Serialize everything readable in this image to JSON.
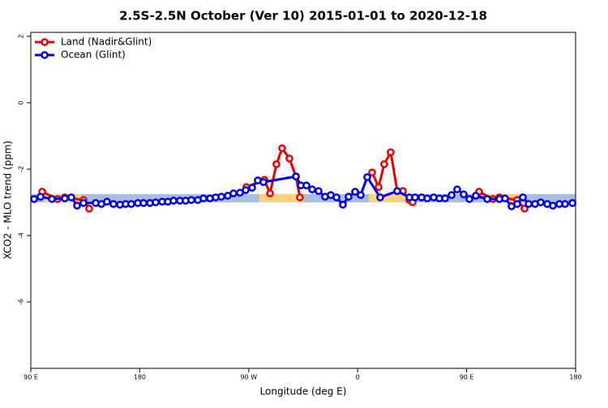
{
  "chart_data": {
    "type": "line",
    "title": "2.5S-2.5N October (Ver 10)   2015-01-01 to 2020-12-18",
    "x_label": "Longitude (deg E)",
    "y_label": "XCO2 - MLO trend (ppm)",
    "xlim": [
      90,
      540
    ],
    "ylim": [
      -8,
      2.12
    ],
    "xticks": [
      {
        "value": 90,
        "label": "90 E"
      },
      180,
      {
        "value": 270,
        "label": "90 W"
      },
      {
        "value": 360,
        "label": "0"
      },
      {
        "value": 450,
        "label": "90 E"
      },
      {
        "value": 540,
        "label": "180"
      }
    ],
    "yticks": [
      -6,
      -4,
      -2,
      0,
      2
    ],
    "legend": "top-left",
    "bands": [
      {
        "xlim": [
          90,
          540
        ],
        "ylim": [
          -3.0,
          -2.75
        ],
        "color": "#a6bfe0"
      },
      {
        "xlim": [
          101.4,
          131.5
        ],
        "ylim": [
          -3.0,
          -2.75
        ],
        "color": "#fdd27a"
      },
      {
        "xlim": [
          278.8,
          315.7
        ],
        "ylim": [
          -3.0,
          -2.75
        ],
        "color": "#fdd27a"
      },
      {
        "xlim": [
          369.2,
          400.7
        ],
        "ylim": [
          -3.0,
          -2.75
        ],
        "color": "#fdd27a"
      },
      {
        "xlim": [
          466.3,
          493.1
        ],
        "ylim": [
          -3.0,
          -2.75
        ],
        "color": "#fdd27a"
      }
    ],
    "series": [
      {
        "name": "Land (Nadir&Glint)",
        "color": "#ee0000",
        "x": [
          99.4,
          112.1,
          118.1,
          133.5,
          138.2,
          null,
          268.1,
          282.9,
          287.6,
          292.9,
          297.6,
          303.6,
          309.0,
          312.3,
          null,
          371.9,
          377.3,
          381.9,
          387.3,
          392.7,
          397.4,
          402.7,
          405.4,
          null,
          460.3,
          471.7,
          477.1,
          491.8,
          497.8
        ],
        "values": [
          -2.68,
          -2.9,
          -2.85,
          -2.93,
          -3.19,
          null,
          -2.54,
          -2.32,
          -2.73,
          -1.85,
          -1.37,
          -1.68,
          -2.22,
          -2.85,
          null,
          -2.1,
          -2.54,
          -1.85,
          -1.49,
          -2.66,
          -2.66,
          -2.93,
          -3.0,
          null,
          -2.68,
          -2.9,
          -2.85,
          -2.93,
          -3.19
        ]
      },
      {
        "name": "Ocean (Glint)",
        "color": "#0000ee",
        "x": [
          92.7,
          98.0,
          107.4,
          118.1,
          123.5,
          128.2,
          133.5,
          143.6,
          148.3,
          152.9,
          158.3,
          163.7,
          168.3,
          173.0,
          178.4,
          183.1,
          188.4,
          193.1,
          198.5,
          203.2,
          207.9,
          213.2,
          217.9,
          222.6,
          228.0,
          232.6,
          238.0,
          242.7,
          247.4,
          252.7,
          257.4,
          262.8,
          267.5,
          272.8,
          277.5,
          282.2,
          309.0,
          313.0,
          317.7,
          322.4,
          327.7,
          333.1,
          337.8,
          342.5,
          347.8,
          352.5,
          357.9,
          362.5,
          367.9,
          378.6,
          392.7,
          402.7,
          407.4,
          412.8,
          417.5,
          422.8,
          427.5,
          432.2,
          437.6,
          442.2,
          447.6,
          452.3,
          457.6,
          467.0,
          477.1,
          481.7,
          487.1,
          491.8,
          496.5,
          501.2,
          506.5,
          511.2,
          516.6,
          521.3,
          526.6,
          531.3,
          537.4
        ],
        "values": [
          -2.9,
          -2.83,
          -2.9,
          -2.88,
          -2.85,
          -3.1,
          -3.02,
          -3.02,
          -3.05,
          -2.98,
          -3.05,
          -3.07,
          -3.05,
          -3.05,
          -3.02,
          -3.02,
          -3.02,
          -3.0,
          -2.98,
          -2.98,
          -2.95,
          -2.95,
          -2.95,
          -2.93,
          -2.93,
          -2.88,
          -2.88,
          -2.85,
          -2.83,
          -2.8,
          -2.73,
          -2.71,
          -2.63,
          -2.56,
          -2.34,
          -2.39,
          -2.22,
          -2.49,
          -2.49,
          -2.61,
          -2.66,
          -2.83,
          -2.78,
          -2.85,
          -3.07,
          -2.83,
          -2.68,
          -2.78,
          -2.24,
          -2.85,
          -2.66,
          -2.85,
          -2.85,
          -2.85,
          -2.88,
          -2.85,
          -2.88,
          -2.88,
          -2.78,
          -2.61,
          -2.76,
          -2.9,
          -2.8,
          -2.9,
          -2.9,
          -2.88,
          -3.12,
          -3.05,
          -2.85,
          -3.05,
          -3.05,
          -3.0,
          -3.05,
          -3.1,
          -3.05,
          -3.05,
          -3.02
        ]
      }
    ]
  }
}
